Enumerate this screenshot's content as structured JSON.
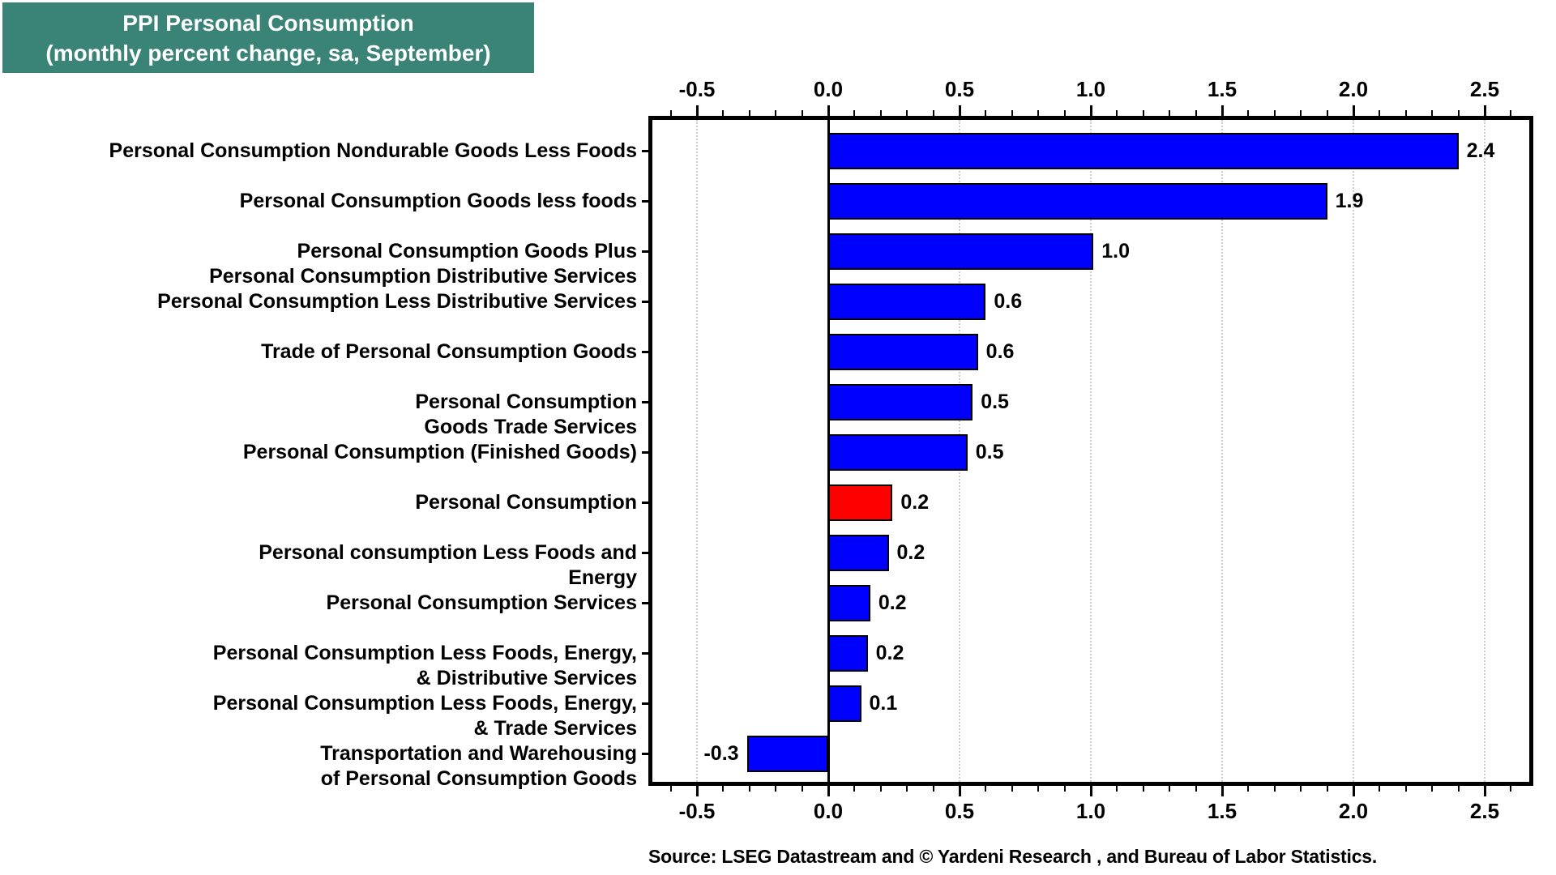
{
  "title": {
    "line1": "PPI Personal Consumption",
    "line2": "(monthly percent change, sa, September)"
  },
  "source": "Source: LSEG Datastream and © Yardeni Research , and Bureau of Labor Statistics.",
  "colors": {
    "title_bg": "#3A8377",
    "title_text": "#FFFFFF",
    "bar_blue": "#0000FF",
    "bar_red": "#FF0000",
    "bar_outline": "#000000",
    "gridline": "#CCCCCC",
    "axis": "#000000"
  },
  "chart_data": {
    "type": "bar",
    "orientation": "horizontal",
    "title": "PPI Personal Consumption (monthly percent change, sa, September)",
    "xlabel": "monthly percent change",
    "axis_sides": [
      "top",
      "bottom"
    ],
    "x_ticks": [
      -0.5,
      0.0,
      0.5,
      1.0,
      1.5,
      2.0,
      2.5
    ],
    "x_tick_labels": [
      "-0.5",
      "0.0",
      "0.5",
      "1.0",
      "1.5",
      "2.0",
      "2.5"
    ],
    "minor_tick_step": 0.1,
    "xlim": [
      -0.67,
      2.67
    ],
    "grid": "vertical dotted at major ticks",
    "categories": [
      "Personal Consumption Nondurable Goods Less Foods",
      "Personal Consumption Goods less foods",
      "Personal Consumption Goods Plus Personal Consumption Distributive Services",
      "Personal Consumption Less Distributive Services",
      "Trade of Personal Consumption Goods",
      "Personal Consumption Goods Trade Services",
      "Personal Consumption (Finished Goods)",
      "Personal Consumption",
      "Personal consumption Less Foods and Energy",
      "Personal Consumption Services",
      "Personal Consumption Less Foods, Energy, & Distributive Services",
      "Personal Consumption Less Foods, Energy, & Trade Services",
      "Transportation and Warehousing of Personal Consumption Goods"
    ],
    "category_label_lines": [
      [
        "Personal Consumption Nondurable Goods Less Foods"
      ],
      [
        "Personal Consumption Goods less foods"
      ],
      [
        "Personal Consumption Goods Plus",
        "Personal Consumption Distributive Services"
      ],
      [
        "Personal Consumption Less Distributive Services"
      ],
      [
        "Trade of Personal Consumption Goods"
      ],
      [
        "Personal Consumption",
        "Goods Trade Services"
      ],
      [
        "Personal Consumption (Finished Goods)"
      ],
      [
        "Personal Consumption"
      ],
      [
        "Personal consumption Less Foods and",
        "Energy"
      ],
      [
        "Personal Consumption Services"
      ],
      [
        "Personal Consumption Less Foods, Energy,",
        "& Distributive Services"
      ],
      [
        "Personal Consumption Less Foods, Energy,",
        "& Trade Services"
      ],
      [
        "Transportation and Warehousing",
        "of Personal Consumption Goods"
      ]
    ],
    "values": [
      2.4,
      1.9,
      1.0,
      0.6,
      0.6,
      0.5,
      0.5,
      0.2,
      0.2,
      0.2,
      0.2,
      0.1,
      -0.3
    ],
    "value_labels": [
      "2.4",
      "1.9",
      "1.0",
      "0.6",
      "0.6",
      "0.5",
      "0.5",
      "0.2",
      "0.2",
      "0.2",
      "0.2",
      "0.1",
      "-0.3"
    ],
    "values_precise": [
      2.4,
      1.9,
      1.01,
      0.6,
      0.57,
      0.55,
      0.53,
      0.245,
      0.23,
      0.16,
      0.15,
      0.125,
      -0.31
    ],
    "bar_colors": [
      "blue",
      "blue",
      "blue",
      "blue",
      "blue",
      "blue",
      "blue",
      "red",
      "blue",
      "blue",
      "blue",
      "blue",
      "blue"
    ],
    "highlighted_category": "Personal Consumption",
    "legend": null
  }
}
